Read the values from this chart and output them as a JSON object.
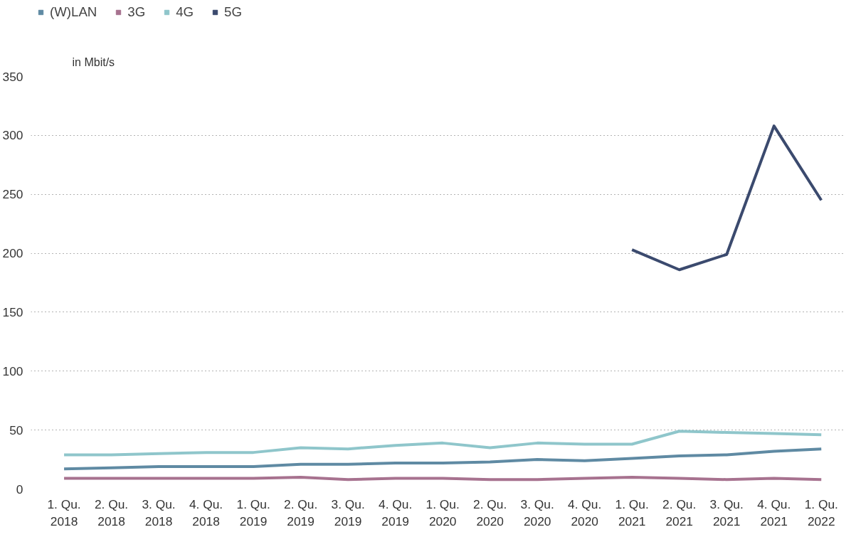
{
  "chart_data": {
    "type": "line",
    "ylabel": "in Mbit/s",
    "categories": [
      "1. Qu.\n2018",
      "2. Qu.\n2018",
      "3. Qu.\n2018",
      "4. Qu.\n2018",
      "1. Qu.\n2019",
      "2. Qu.\n2019",
      "3. Qu.\n2019",
      "4. Qu.\n2019",
      "1. Qu.\n2020",
      "2. Qu.\n2020",
      "3. Qu.\n2020",
      "4. Qu.\n2020",
      "1. Qu.\n2021",
      "2. Qu.\n2021",
      "3. Qu.\n2021",
      "4. Qu.\n2021",
      "1. Qu.\n2022"
    ],
    "series": [
      {
        "name": "(W)LAN",
        "color": "#5f8aa3",
        "values": [
          17,
          18,
          19,
          19,
          19,
          21,
          21,
          22,
          22,
          23,
          25,
          24,
          26,
          28,
          29,
          32,
          34
        ]
      },
      {
        "name": "3G",
        "color": "#a7728f",
        "values": [
          9,
          9,
          9,
          9,
          9,
          10,
          8,
          9,
          9,
          8,
          8,
          9,
          10,
          9,
          8,
          9,
          8
        ]
      },
      {
        "name": "4G",
        "color": "#8fc6cb",
        "values": [
          29,
          29,
          30,
          31,
          31,
          35,
          34,
          37,
          39,
          35,
          39,
          38,
          38,
          49,
          48,
          47,
          46
        ]
      },
      {
        "name": "5G",
        "color": "#3b4a6e",
        "values": [
          null,
          null,
          null,
          null,
          null,
          null,
          null,
          null,
          null,
          null,
          null,
          null,
          203,
          186,
          199,
          308,
          245
        ]
      }
    ],
    "ylim": [
      0,
      350
    ],
    "yticks": [
      0,
      50,
      100,
      150,
      200,
      250,
      300,
      350
    ],
    "grid": "y",
    "legend": "top left",
    "marker": "none",
    "line_style": "solid"
  }
}
